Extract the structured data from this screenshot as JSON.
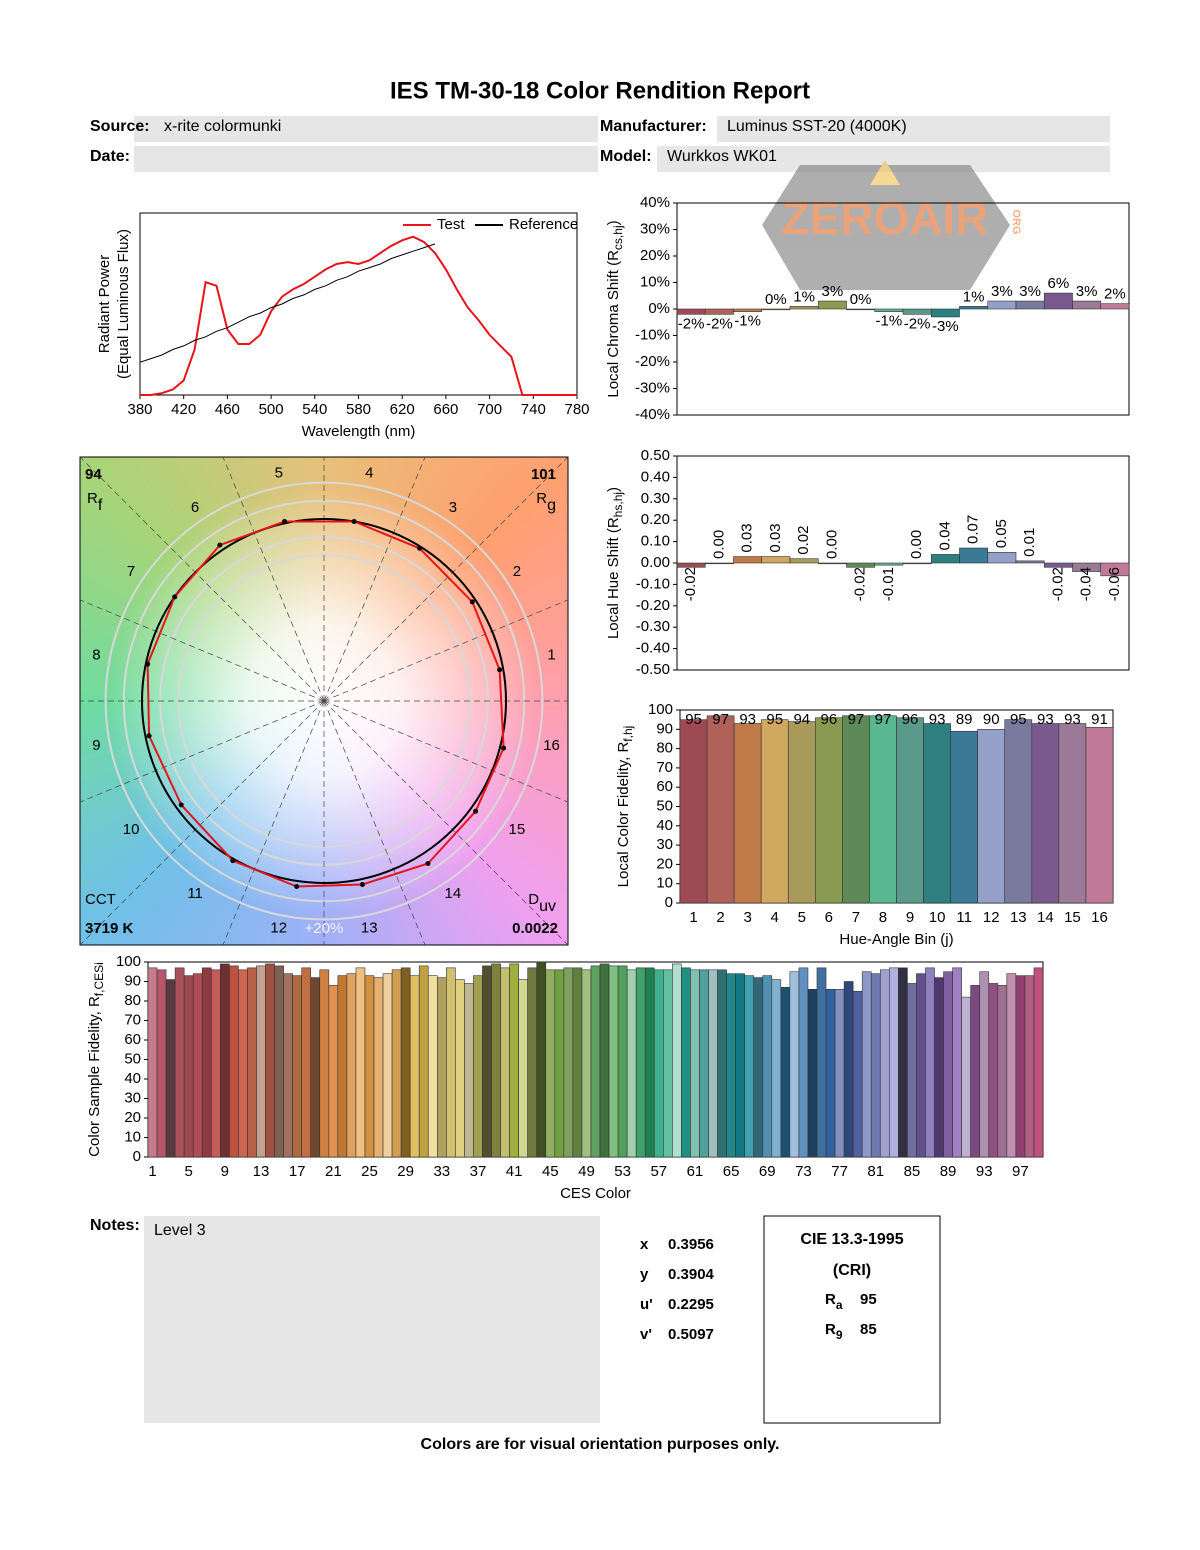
{
  "header": {
    "title": "IES TM-30-18 Color Rendition Report",
    "source_label": "Source:",
    "source": "x-rite colormunki",
    "manufacturer_label": "Manufacturer:",
    "manufacturer": "Luminus SST-20 (4000K)",
    "date_label": "Date:",
    "model_label": "Model:",
    "model": "Wurkkos WK01"
  },
  "watermark": {
    "text": "ZEROAIR",
    "sub": "ORG"
  },
  "chart_data": [
    {
      "type": "line",
      "x_label": "Wavelength (nm)",
      "y_label": "Radiant Power",
      "y_label_2": "(Equal Luminous Flux)",
      "x": [
        380,
        390,
        400,
        410,
        420,
        430,
        440,
        450,
        460,
        470,
        480,
        490,
        500,
        510,
        520,
        530,
        540,
        550,
        560,
        570,
        580,
        590,
        600,
        610,
        620,
        630,
        640,
        650,
        660,
        670,
        680,
        690,
        700,
        710,
        720,
        730,
        740,
        750,
        760,
        770,
        780
      ],
      "series": [
        {
          "name": "Test",
          "color": "#e8141a",
          "values": [
            0,
            0,
            0.01,
            0.03,
            0.08,
            0.25,
            0.62,
            0.6,
            0.36,
            0.28,
            0.28,
            0.33,
            0.46,
            0.54,
            0.58,
            0.61,
            0.65,
            0.69,
            0.72,
            0.73,
            0.72,
            0.74,
            0.78,
            0.82,
            0.85,
            0.87,
            0.84,
            0.78,
            0.69,
            0.58,
            0.48,
            0.41,
            0.33,
            0.27,
            0.21,
            0,
            0,
            0,
            0,
            0,
            0
          ]
        },
        {
          "name": "Reference",
          "color": "#000000",
          "values": [
            0.18,
            0.2,
            0.22,
            0.25,
            0.27,
            0.3,
            0.32,
            0.35,
            0.37,
            0.4,
            0.43,
            0.45,
            0.48,
            0.5,
            0.53,
            0.55,
            0.58,
            0.6,
            0.63,
            0.65,
            0.68,
            0.7,
            0.72,
            0.75,
            0.77,
            0.79,
            0.81,
            0.83,
            null,
            null,
            null,
            null,
            null,
            null,
            null,
            null,
            null,
            null,
            null,
            null,
            null
          ]
        }
      ],
      "xlim": [
        380,
        780
      ],
      "ylim": [
        0,
        1
      ],
      "xticks": [
        380,
        420,
        460,
        500,
        540,
        580,
        620,
        660,
        700,
        740,
        780
      ]
    },
    {
      "type": "bar",
      "y_label": [
        "Local Chroma Shift (R",
        "cs,hj",
        ")"
      ],
      "values": [
        -2,
        -2,
        -1,
        0,
        1,
        3,
        0,
        -1,
        -2,
        -3,
        1,
        3,
        3,
        6,
        3,
        2
      ],
      "value_labels": [
        "-2%",
        "-2%",
        "-1%",
        "0%",
        "1%",
        "3%",
        "0%",
        "-1%",
        "-2%",
        "-3%",
        "1%",
        "3%",
        "3%",
        "6%",
        "3%",
        "2%"
      ],
      "colors": [
        "#9e4a55",
        "#b0625a",
        "#c07a4a",
        "#d0a860",
        "#a89a5a",
        "#8a9a50",
        "#5e8a5a",
        "#5ab890",
        "#5a9a8a",
        "#2e8080",
        "#3a7a96",
        "#94a0c8",
        "#7a7a9e",
        "#7a5a8e",
        "#9a7a96",
        "#c07a98"
      ],
      "ylim": [
        -40,
        40
      ],
      "yticks": [
        {
          "value": -40,
          "label": "-40%"
        },
        {
          "value": -30,
          "label": "-30%"
        },
        {
          "value": -20,
          "label": "-20%"
        },
        {
          "value": -10,
          "label": "-10%"
        },
        {
          "value": 0,
          "label": "0%"
        },
        {
          "value": 10,
          "label": "10%"
        },
        {
          "value": 20,
          "label": "20%"
        },
        {
          "value": 30,
          "label": "30%"
        },
        {
          "value": 40,
          "label": "40%"
        }
      ]
    },
    {
      "type": "bar",
      "y_label": [
        "Local Hue Shift (R",
        "hs,hj",
        ")"
      ],
      "values": [
        -0.02,
        0,
        0.03,
        0.03,
        0.02,
        0,
        -0.02,
        -0.01,
        0,
        0.04,
        0.07,
        0.05,
        0.01,
        -0.02,
        -0.04,
        -0.06
      ],
      "value_labels": [
        "-0.02",
        "0.00",
        "0.03",
        "0.03",
        "0.02",
        "0.00",
        "-0.02",
        "-0.01",
        "0.00",
        "0.04",
        "0.07",
        "0.05",
        "0.01",
        "-0.02",
        "-0.04",
        "-0.06"
      ],
      "colors": [
        "#9e4a55",
        "#b0625a",
        "#c07a4a",
        "#d0a860",
        "#a89a5a",
        "#8a9a50",
        "#5e8a5a",
        "#5ab890",
        "#5a9a8a",
        "#2e8080",
        "#3a7a96",
        "#94a0c8",
        "#7a7a9e",
        "#7a5a8e",
        "#9a7a96",
        "#c07a98"
      ],
      "ylim": [
        -0.5,
        0.5
      ],
      "yticks": [
        {
          "value": -0.5,
          "label": "-0.50"
        },
        {
          "value": -0.4,
          "label": "-0.40"
        },
        {
          "value": -0.3,
          "label": "-0.30"
        },
        {
          "value": -0.2,
          "label": "-0.20"
        },
        {
          "value": -0.1,
          "label": "-0.10"
        },
        {
          "value": 0,
          "label": "0.00"
        },
        {
          "value": 0.1,
          "label": "0.10"
        },
        {
          "value": 0.2,
          "label": "0.20"
        },
        {
          "value": 0.3,
          "label": "0.30"
        },
        {
          "value": 0.4,
          "label": "0.40"
        },
        {
          "value": 0.5,
          "label": "0.50"
        }
      ]
    },
    {
      "type": "bar",
      "x_label": "Hue-Angle Bin (j)",
      "y_label": [
        "Local Color Fidelity, R",
        "f,hj"
      ],
      "categories": [
        1,
        2,
        3,
        4,
        5,
        6,
        7,
        8,
        9,
        10,
        11,
        12,
        13,
        14,
        15,
        16
      ],
      "values": [
        95,
        97,
        93,
        95,
        94,
        96,
        97,
        97,
        96,
        93,
        89,
        90,
        95,
        93,
        93,
        91
      ],
      "colors": [
        "#9e4a55",
        "#b0625a",
        "#c07a4a",
        "#d0a860",
        "#a89a5a",
        "#8a9a50",
        "#5e8a5a",
        "#5ab890",
        "#5a9a8a",
        "#2e8080",
        "#3a7a96",
        "#94a0c8",
        "#7a7a9e",
        "#7a5a8e",
        "#9a7a96",
        "#c07a98"
      ],
      "ylim": [
        0,
        100
      ],
      "yticks": [
        0,
        10,
        20,
        30,
        40,
        50,
        60,
        70,
        80,
        90,
        100
      ]
    },
    {
      "type": "bar",
      "x_label": "CES Color",
      "y_label": [
        "Color Sample Fidelity, R",
        "f,CESi"
      ],
      "categories": [
        1,
        null,
        null,
        null,
        5,
        null,
        null,
        null,
        9,
        null,
        null,
        null,
        13,
        null,
        null,
        null,
        17,
        null,
        null,
        null,
        21,
        null,
        null,
        null,
        25,
        null,
        null,
        null,
        29,
        null,
        null,
        null,
        33,
        null,
        null,
        null,
        37,
        null,
        null,
        null,
        41,
        null,
        null,
        null,
        45,
        null,
        null,
        null,
        49,
        null,
        null,
        null,
        53,
        null,
        null,
        null,
        57,
        null,
        null,
        null,
        61,
        null,
        null,
        null,
        65,
        null,
        null,
        null,
        69,
        null,
        null,
        null,
        73,
        null,
        null,
        null,
        77,
        null,
        null,
        null,
        81,
        null,
        null,
        null,
        85,
        null,
        null,
        null,
        89,
        null,
        null,
        null,
        93,
        null,
        null,
        null,
        97,
        null,
        null
      ],
      "values": [
        97,
        96,
        91,
        97,
        93,
        94,
        97,
        96,
        99,
        98,
        96,
        97,
        98,
        99,
        98,
        94,
        93,
        97,
        92,
        96,
        88,
        93,
        94,
        97,
        93,
        92,
        94,
        96,
        97,
        93,
        98,
        93,
        92,
        97,
        91,
        89,
        93,
        98,
        99,
        97,
        99,
        91,
        97,
        100,
        96,
        96,
        97,
        97,
        96,
        98,
        99,
        98,
        98,
        96,
        97,
        97,
        96,
        96,
        99,
        97,
        96,
        96,
        96,
        96,
        94,
        94,
        93,
        92,
        93,
        91,
        87,
        95,
        97,
        86,
        97,
        86,
        86,
        90,
        85,
        95,
        94,
        96,
        97,
        97,
        89,
        94,
        97,
        92,
        95,
        97,
        82,
        88,
        95,
        89,
        88,
        94,
        93,
        93,
        97
      ],
      "colors": [
        "#c77b8c",
        "#b5566a",
        "#5a3a3e",
        "#a8505c",
        "#9c4a50",
        "#b04c55",
        "#8e3a40",
        "#c45a5a",
        "#6e3030",
        "#c05040",
        "#d06550",
        "#b86048",
        "#c8a090",
        "#a05040",
        "#806050",
        "#a07060",
        "#b06a40",
        "#c07040",
        "#704830",
        "#d08040",
        "#e09050",
        "#c07830",
        "#e0a060",
        "#f0c080",
        "#d09040",
        "#e8b070",
        "#f0d0a0",
        "#d0a050",
        "#806020",
        "#e0c060",
        "#c0a040",
        "#f0e0a0",
        "#b0a060",
        "#d0c070",
        "#e0d080",
        "#c0b890",
        "#a0a050",
        "#505030",
        "#808040",
        "#c0c070",
        "#a0b040",
        "#d0d890",
        "#707840",
        "#405020",
        "#90b060",
        "#70a040",
        "#80a060",
        "#608040",
        "#a0c080",
        "#60a060",
        "#407040",
        "#80c080",
        "#50a060",
        "#a0d0b0",
        "#40a070",
        "#208050",
        "#40b090",
        "#60c0a0",
        "#b0e0d0",
        "#209080",
        "#80c0b0",
        "#50a0a0",
        "#a0c0c0",
        "#307070",
        "#208888",
        "#107880",
        "#40a0b0",
        "#306878",
        "#5090b0",
        "#80b0d0",
        "#205070",
        "#a0c0e0",
        "#6090c0",
        "#204060",
        "#4070a0",
        "#3060a0",
        "#8090c0",
        "#304878",
        "#5060a0",
        "#9098c8",
        "#7078b0",
        "#a0a0d0",
        "#b0b0e0",
        "#303040",
        "#7070a0",
        "#605090",
        "#9080c0",
        "#503870",
        "#8060a0",
        "#a080c0",
        "#c0b0d0",
        "#7a4a80",
        "#b090b0",
        "#905080",
        "#a07090",
        "#c090b0",
        "#904070",
        "#b06080",
        "#c05080"
      ],
      "ylim": [
        0,
        100
      ],
      "yticks": [
        0,
        10,
        20,
        30,
        40,
        50,
        60,
        70,
        80,
        90,
        100
      ]
    },
    {
      "type": "vector",
      "rf": 94,
      "rf_symbol": "R",
      "rf_sub": "f",
      "rg": 101,
      "rg_symbol": "R",
      "rg_sub": "g",
      "cct_label": "CCT",
      "cct": "3719 K",
      "duv_symbol": "D",
      "duv_sub": "uv",
      "duv": 0.0022,
      "ring_label": "+20%",
      "test_color": "#e8141a",
      "reference_color": "#000000"
    }
  ],
  "notes": {
    "label": "Notes:",
    "text": "Level 3"
  },
  "chromaticity": [
    {
      "label": "x",
      "value": 0.3956
    },
    {
      "label": "y",
      "value": 0.3904
    },
    {
      "label": "u'",
      "value": 0.2295
    },
    {
      "label": "v'",
      "value": 0.5097
    }
  ],
  "cri": {
    "title": "CIE 13.3-1995",
    "subtitle": "(CRI)",
    "indices": [
      {
        "symbol": "R",
        "sub": "a",
        "value": 95
      },
      {
        "symbol": "R",
        "sub": "9",
        "value": 85
      }
    ]
  },
  "footer": "Colors are for visual orientation purposes only."
}
